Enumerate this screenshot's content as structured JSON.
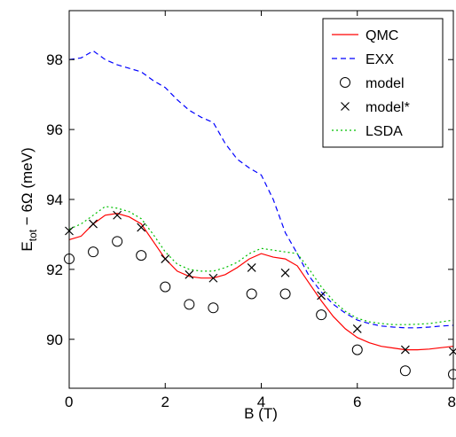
{
  "chart_data": {
    "type": "line",
    "xlabel": "B (T)",
    "ylabel": {
      "main": "E",
      "sub": "tot",
      "rest": " − 6Ω (meV)"
    },
    "xlim": [
      0,
      8
    ],
    "ylim": [
      88.6,
      99.4
    ],
    "xticks": [
      0,
      2,
      4,
      6,
      8
    ],
    "yticks": [
      90,
      92,
      94,
      96,
      98
    ],
    "grid": false,
    "legend_position": "top-right",
    "series": [
      {
        "name": "QMC",
        "style": "solid",
        "color": "#ff0000",
        "x": [
          0,
          0.25,
          0.5,
          0.75,
          1.0,
          1.25,
          1.5,
          1.75,
          2.0,
          2.25,
          2.5,
          2.75,
          3.0,
          3.25,
          3.5,
          3.75,
          4.0,
          4.25,
          4.5,
          4.75,
          5.0,
          5.25,
          5.5,
          5.75,
          6.0,
          6.25,
          6.5,
          6.75,
          7.0,
          7.25,
          7.5,
          7.75,
          8.0
        ],
        "y": [
          92.85,
          92.95,
          93.3,
          93.55,
          93.6,
          93.5,
          93.3,
          92.8,
          92.3,
          91.95,
          91.8,
          91.75,
          91.75,
          91.85,
          92.05,
          92.3,
          92.45,
          92.35,
          92.3,
          92.1,
          91.6,
          91.1,
          90.65,
          90.3,
          90.05,
          89.9,
          89.8,
          89.75,
          89.7,
          89.7,
          89.72,
          89.76,
          89.8
        ]
      },
      {
        "name": "EXX",
        "style": "dashed",
        "color": "#0000ff",
        "x": [
          0,
          0.25,
          0.5,
          0.75,
          1.0,
          1.25,
          1.5,
          1.75,
          2.0,
          2.25,
          2.5,
          2.75,
          3.0,
          3.25,
          3.5,
          3.75,
          4.0,
          4.25,
          4.5,
          4.75,
          5.0,
          5.25,
          5.5,
          5.75,
          6.0,
          6.25,
          6.5,
          6.75,
          7.0,
          7.25,
          7.5,
          7.75,
          8.0
        ],
        "y": [
          98.0,
          98.05,
          98.25,
          98.0,
          97.85,
          97.75,
          97.65,
          97.4,
          97.2,
          96.85,
          96.55,
          96.35,
          96.2,
          95.6,
          95.15,
          94.9,
          94.7,
          94.0,
          93.05,
          92.45,
          91.8,
          91.35,
          91.0,
          90.75,
          90.55,
          90.45,
          90.38,
          90.35,
          90.33,
          90.33,
          90.35,
          90.38,
          90.4
        ]
      },
      {
        "name": "model",
        "style": "marker-circle",
        "color": "#000000",
        "x": [
          0,
          0.5,
          1.0,
          1.5,
          2.0,
          2.5,
          3.0,
          3.8,
          4.5,
          5.25,
          6.0,
          7.0,
          8.0
        ],
        "y": [
          92.3,
          92.5,
          92.8,
          92.4,
          91.5,
          91.0,
          90.9,
          91.3,
          91.3,
          90.7,
          89.7,
          89.1,
          89.0
        ]
      },
      {
        "name": "model*",
        "style": "marker-x",
        "color": "#000000",
        "x": [
          0,
          0.5,
          1.0,
          1.5,
          2.0,
          2.5,
          3.0,
          3.8,
          4.5,
          5.25,
          6.0,
          7.0,
          8.0
        ],
        "y": [
          93.1,
          93.3,
          93.55,
          93.2,
          92.3,
          91.85,
          91.75,
          92.05,
          91.9,
          91.25,
          90.3,
          89.7,
          89.65
        ]
      },
      {
        "name": "LSDA",
        "style": "dotted",
        "color": "#00c000",
        "x": [
          0,
          0.25,
          0.5,
          0.75,
          1.0,
          1.25,
          1.5,
          1.75,
          2.0,
          2.25,
          2.5,
          2.75,
          3.0,
          3.25,
          3.5,
          3.75,
          4.0,
          4.25,
          4.5,
          4.75,
          5.0,
          5.25,
          5.5,
          5.75,
          6.0,
          6.25,
          6.5,
          6.75,
          7.0,
          7.25,
          7.5,
          7.75,
          8.0
        ],
        "y": [
          93.15,
          93.3,
          93.55,
          93.8,
          93.75,
          93.65,
          93.45,
          93.0,
          92.5,
          92.15,
          92.0,
          91.95,
          91.95,
          92.05,
          92.2,
          92.45,
          92.6,
          92.55,
          92.5,
          92.45,
          92.0,
          91.5,
          91.1,
          90.8,
          90.6,
          90.5,
          90.45,
          90.42,
          90.42,
          90.43,
          90.45,
          90.5,
          90.55
        ]
      }
    ]
  }
}
